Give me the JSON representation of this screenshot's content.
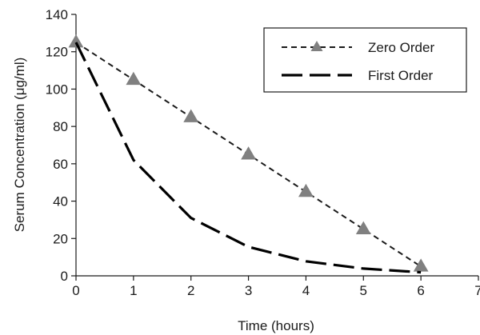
{
  "chart_data": {
    "type": "line",
    "title": "",
    "xlabel": "Time (hours)",
    "ylabel": "Serum Concentration (μg/ml)",
    "xlim": [
      0,
      7
    ],
    "ylim": [
      0,
      140
    ],
    "x_ticks": [
      0,
      1,
      2,
      3,
      4,
      5,
      6,
      7
    ],
    "y_ticks": [
      0,
      20,
      40,
      60,
      80,
      100,
      120,
      140
    ],
    "grid": false,
    "legend_position": "top-right",
    "series": [
      {
        "name": "Zero Order",
        "style": "dashed",
        "marker": "triangle",
        "color": "#1a1a1a",
        "marker_color": "#808080",
        "x": [
          0,
          1,
          2,
          3,
          4,
          5,
          6
        ],
        "y": [
          125,
          105,
          85,
          65,
          45,
          25,
          5
        ]
      },
      {
        "name": "First Order",
        "style": "long-dash",
        "marker": "none",
        "color": "#000000",
        "x": [
          0,
          1,
          2,
          3,
          4,
          5,
          6
        ],
        "y": [
          125,
          62,
          31,
          15.5,
          7.8,
          3.9,
          1.9
        ]
      }
    ]
  }
}
